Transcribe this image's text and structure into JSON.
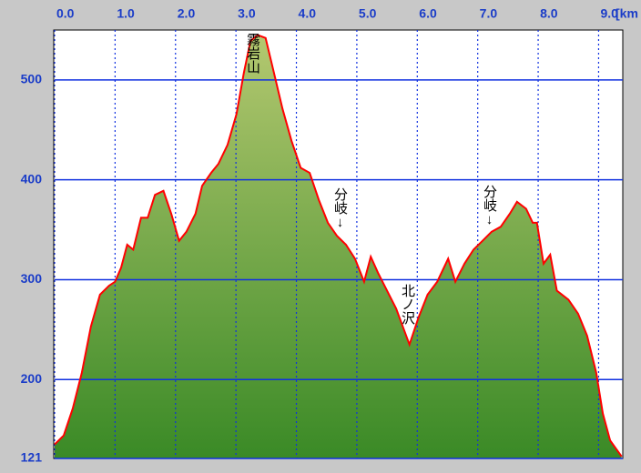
{
  "chart_data": {
    "type": "area",
    "x_unit": "[km",
    "xlim": [
      0,
      9.4
    ],
    "ylim": [
      121,
      550
    ],
    "xticks": [
      {
        "value": 0,
        "label": "0.0"
      },
      {
        "value": 1,
        "label": "1.0"
      },
      {
        "value": 2,
        "label": "2.0"
      },
      {
        "value": 3,
        "label": "3.0"
      },
      {
        "value": 4,
        "label": "4.0"
      },
      {
        "value": 5,
        "label": "5.0"
      },
      {
        "value": 6,
        "label": "6.0"
      },
      {
        "value": 7,
        "label": "7.0"
      },
      {
        "value": 8,
        "label": "8.0"
      },
      {
        "value": 9,
        "label": "9.0"
      }
    ],
    "yticks": [
      121,
      200,
      300,
      400,
      500
    ],
    "grid": true,
    "line_color": "#ff0000",
    "fill_top_color": "#b4c870",
    "fill_bottom_color": "#3a8a26",
    "x": [
      0,
      0.15,
      0.3,
      0.45,
      0.6,
      0.75,
      0.9,
      1.0,
      1.1,
      1.2,
      1.3,
      1.43,
      1.54,
      1.66,
      1.8,
      1.93,
      2.06,
      2.18,
      2.33,
      2.44,
      2.59,
      2.71,
      2.86,
      3.01,
      3.13,
      3.24,
      3.36,
      3.49,
      3.61,
      3.77,
      3.92,
      4.07,
      4.22,
      4.37,
      4.52,
      4.67,
      4.82,
      4.97,
      5.12,
      5.23,
      5.35,
      5.5,
      5.65,
      5.87,
      6.02,
      6.17,
      6.33,
      6.51,
      6.63,
      6.78,
      6.93,
      7.08,
      7.23,
      7.38,
      7.53,
      7.65,
      7.8,
      7.91,
      7.98,
      8.09,
      8.2,
      8.31,
      8.5,
      8.66,
      8.81,
      8.96,
      9.07,
      9.19,
      9.38
    ],
    "values": [
      135,
      144,
      171,
      207,
      253,
      285,
      294,
      298,
      312,
      335,
      330,
      362,
      362,
      385,
      389,
      366,
      339,
      348,
      366,
      394,
      407,
      416,
      435,
      466,
      507,
      539,
      545,
      542,
      512,
      471,
      439,
      412,
      407,
      380,
      357,
      344,
      335,
      321,
      298,
      323,
      307,
      289,
      271,
      235,
      262,
      285,
      298,
      321,
      298,
      316,
      330,
      339,
      348,
      353,
      366,
      378,
      371,
      357,
      357,
      316,
      325,
      289,
      280,
      266,
      244,
      207,
      166,
      139,
      123
    ],
    "annotations": [
      "霧岩山",
      "分岐↓",
      "北ノ沢",
      "分岐↓"
    ]
  }
}
